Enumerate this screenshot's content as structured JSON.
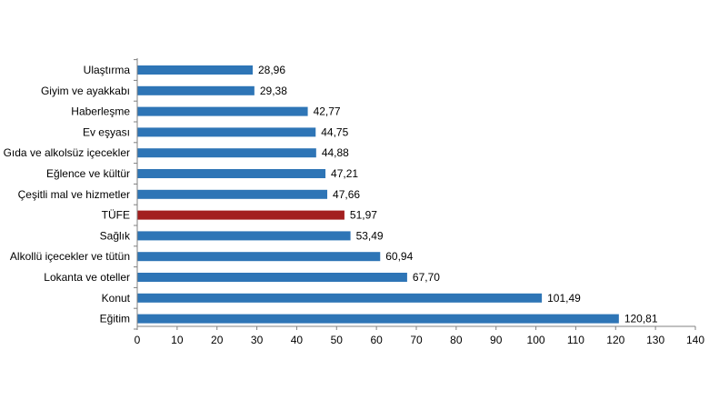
{
  "chart_data": {
    "type": "bar",
    "orientation": "horizontal",
    "title": "",
    "xlabel": "",
    "ylabel": "",
    "xlim": [
      0,
      140
    ],
    "grid": false,
    "legend": "none",
    "categories": [
      "Ulaştırma",
      "Giyim ve ayakkabı",
      "Haberleşme",
      "Ev eşyası",
      "Gıda ve alkolsüz içecekler",
      "Eğlence ve kültür",
      "Çeşitli mal ve hizmetler",
      "TÜFE",
      "Sağlık",
      "Alkollü içecekler ve tütün",
      "Lokanta ve oteller",
      "Konut",
      "Eğitim"
    ],
    "values": [
      28.96,
      29.38,
      42.77,
      44.75,
      44.88,
      47.21,
      47.66,
      51.97,
      53.49,
      60.94,
      67.7,
      101.49,
      120.81
    ],
    "value_labels": [
      "28,96",
      "29,38",
      "42,77",
      "44,75",
      "44,88",
      "47,21",
      "47,66",
      "51,97",
      "53,49",
      "60,94",
      "67,70",
      "101,49",
      "120,81"
    ],
    "highlight_category": "TÜFE",
    "x_ticks": [
      0,
      10,
      20,
      30,
      40,
      50,
      60,
      70,
      80,
      90,
      100,
      110,
      120,
      130,
      140
    ],
    "colors": {
      "bar": "#2e75b6",
      "highlight": "#a31f1f",
      "axis": "#808080"
    }
  }
}
